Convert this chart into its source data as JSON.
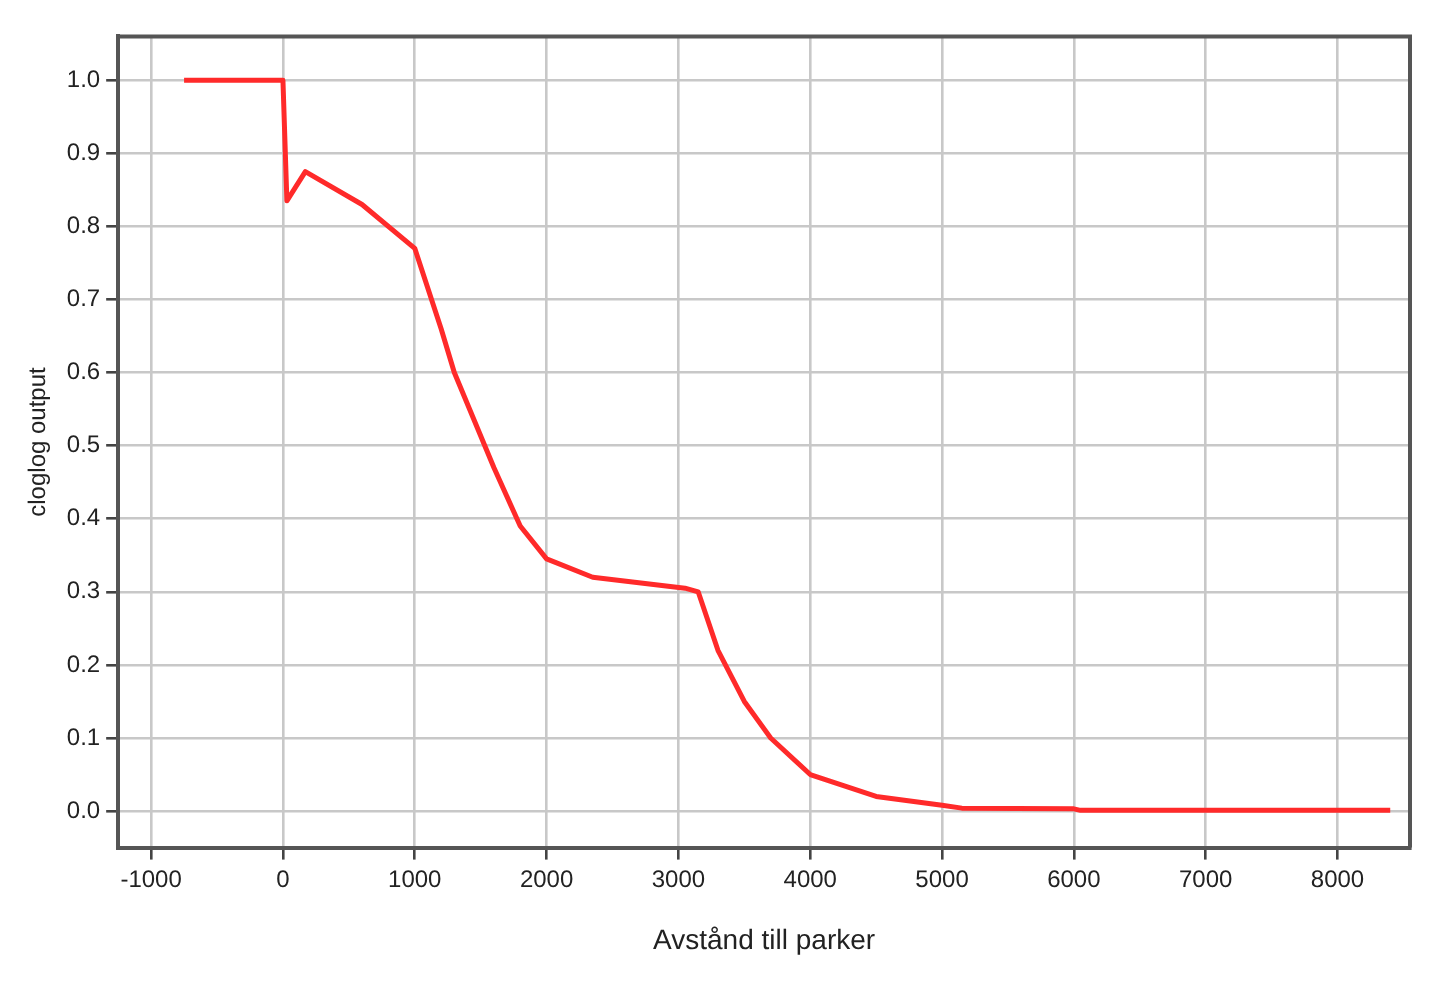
{
  "chart_data": {
    "type": "line",
    "xlabel": "Avstånd till parker",
    "ylabel": "cloglog output",
    "x": [
      -750,
      0,
      30,
      170,
      600,
      1000,
      1200,
      1300,
      1600,
      1800,
      2000,
      2350,
      3050,
      3150,
      3300,
      3500,
      3700,
      4000,
      4500,
      5000,
      5150,
      6000,
      6050,
      8400
    ],
    "series": [
      {
        "color": "#ff2a2a",
        "values": [
          1.0,
          1.0,
          0.835,
          0.875,
          0.83,
          0.77,
          0.66,
          0.6,
          0.47,
          0.39,
          0.345,
          0.32,
          0.305,
          0.3,
          0.22,
          0.15,
          0.1,
          0.05,
          0.02,
          0.008,
          0.004,
          0.003,
          0.001,
          0.001
        ]
      }
    ],
    "xlim": [
      -1250,
      8550
    ],
    "xticks": [
      -1000,
      0,
      1000,
      2000,
      3000,
      4000,
      5000,
      6000,
      7000,
      8000
    ],
    "ylim": [
      -0.05,
      1.06
    ],
    "yticks": [
      {
        "value": 0,
        "label": "0.0"
      },
      {
        "value": 0.1,
        "label": "0.1"
      },
      {
        "value": 0.2,
        "label": "0.2"
      },
      {
        "value": 0.3,
        "label": "0.3"
      },
      {
        "value": 0.4,
        "label": "0.4"
      },
      {
        "value": 0.5,
        "label": "0.5"
      },
      {
        "value": 0.6,
        "label": "0.6"
      },
      {
        "value": 0.7,
        "label": "0.7"
      },
      {
        "value": 0.8,
        "label": "0.8"
      },
      {
        "value": 0.9,
        "label": "0.9"
      },
      {
        "value": 1,
        "label": "1.0"
      }
    ],
    "grid": true,
    "legend": false,
    "marker": "none",
    "line_style": "solid"
  }
}
